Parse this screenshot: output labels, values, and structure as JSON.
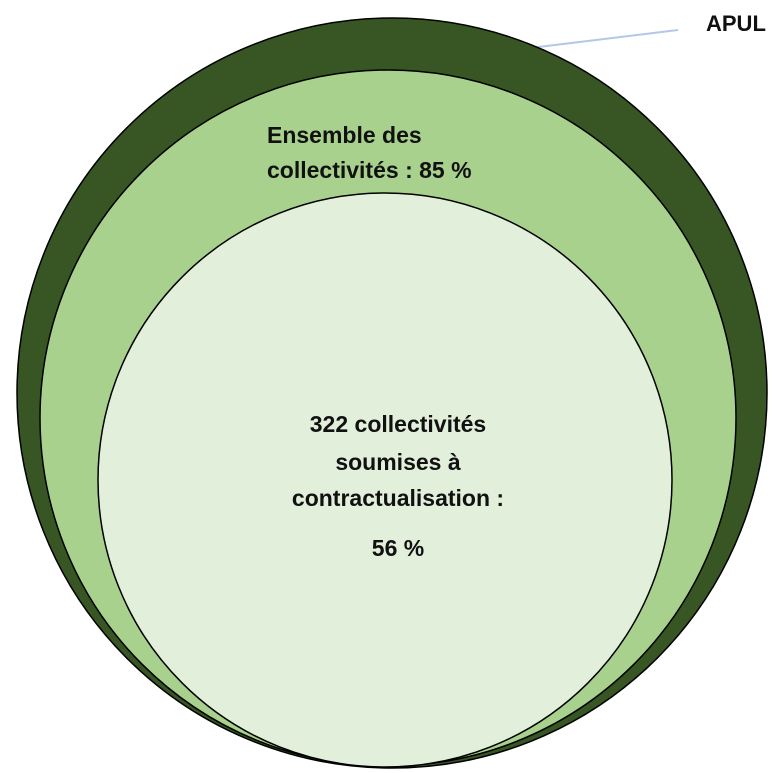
{
  "apul": {
    "label": "APUL"
  },
  "ensemble": {
    "line1": "Ensemble des",
    "line2": "collectivités : 85 %"
  },
  "contract": {
    "line1": "322 collectivités",
    "line2": "soumises à",
    "line3": "contractualisation  :",
    "value": "56 %"
  },
  "colors": {
    "outer": "#375623",
    "middle": "#a9d18e",
    "inner": "#e2efda",
    "stroke": "#000000",
    "leader": "#b4c7e7"
  }
}
